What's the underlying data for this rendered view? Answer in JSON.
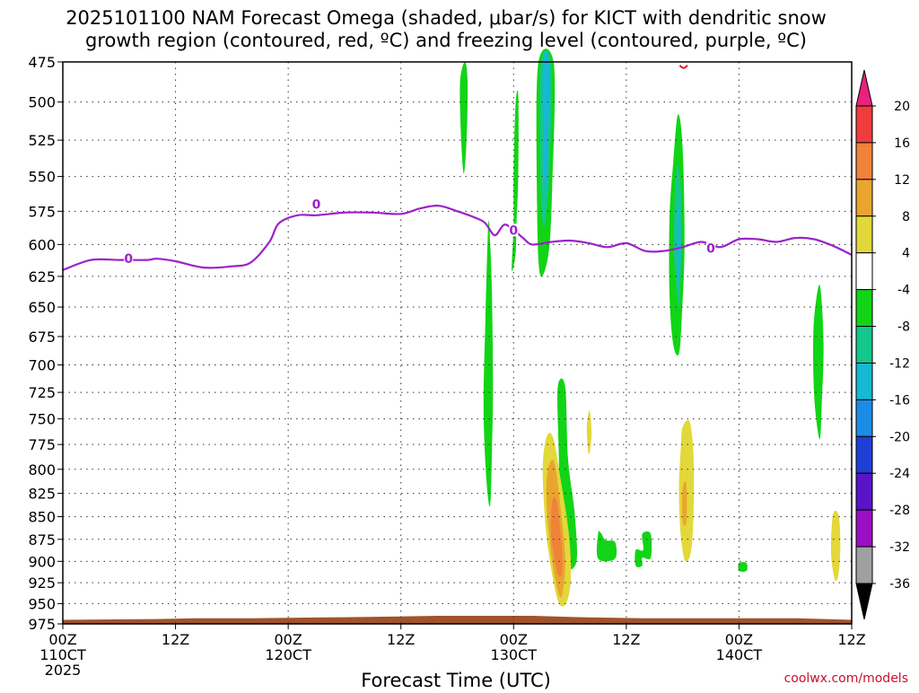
{
  "chart_data": {
    "type": "heatmap",
    "title_lines": [
      "2025101100 NAM Forecast Omega (shaded, μbar/s) for KICT with dendritic snow",
      "growth region (contoured, red, ºC) and freezing level (contoured, purple, ºC)"
    ],
    "xlabel": "Forecast Time (UTC)",
    "ylabel": "",
    "x_unit": "hours since 2025-10-11 00Z",
    "xlim": [
      0,
      84
    ],
    "x_ticks": [
      {
        "x": 0,
        "lines": [
          "00Z",
          "110CT",
          "2025"
        ]
      },
      {
        "x": 12,
        "lines": [
          "12Z"
        ]
      },
      {
        "x": 24,
        "lines": [
          "00Z",
          "120CT"
        ]
      },
      {
        "x": 36,
        "lines": [
          "12Z"
        ]
      },
      {
        "x": 48,
        "lines": [
          "00Z",
          "130CT"
        ]
      },
      {
        "x": 60,
        "lines": [
          "12Z"
        ]
      },
      {
        "x": 72,
        "lines": [
          "00Z",
          "140CT"
        ]
      },
      {
        "x": 84,
        "lines": [
          "12Z"
        ]
      }
    ],
    "y_scale": "log-pressure",
    "ylim_hPa": [
      975,
      475
    ],
    "y_ticks": [
      "475",
      "500",
      "525",
      "550",
      "575",
      "600",
      "625",
      "650",
      "675",
      "700",
      "725",
      "750",
      "775",
      "800",
      "825",
      "850",
      "875",
      "900",
      "925",
      "950",
      "975"
    ],
    "grid": true,
    "colorbar": {
      "labels": [
        "20",
        "16",
        "12",
        "8",
        "4",
        "-4",
        "-8",
        "-12",
        "-16",
        "-20",
        "-24",
        "-28",
        "-32",
        "-36"
      ],
      "bins": [
        {
          "range": ">20",
          "color": "#e8227e"
        },
        {
          "range": "16 to 20",
          "color": "#f03c3c"
        },
        {
          "range": "12 to 16",
          "color": "#f0823a"
        },
        {
          "range": "8 to 12",
          "color": "#e9a52e"
        },
        {
          "range": "4 to 8",
          "color": "#e2d83a"
        },
        {
          "range": "-4 to 4",
          "color": "#ffffff"
        },
        {
          "range": "-8 to -4",
          "color": "#12d416"
        },
        {
          "range": "-12 to -8",
          "color": "#14c78c"
        },
        {
          "range": "-16 to -12",
          "color": "#16b8d2"
        },
        {
          "range": "-20 to -16",
          "color": "#1a8ce6"
        },
        {
          "range": "-24 to -20",
          "color": "#1d3fd6"
        },
        {
          "range": "-28 to -24",
          "color": "#5a14c8"
        },
        {
          "range": "-32 to -28",
          "color": "#9a0fc3"
        },
        {
          "range": "-36 to -32",
          "color": "#a0a0a0"
        },
        {
          "range": "<-36",
          "color": "#000000"
        }
      ]
    },
    "freezing_level": {
      "color": "#9b22c9",
      "label": "0",
      "points": [
        [
          0,
          620
        ],
        [
          3,
          612
        ],
        [
          6,
          612
        ],
        [
          9,
          612
        ],
        [
          10,
          611
        ],
        [
          12,
          613
        ],
        [
          15,
          618
        ],
        [
          18,
          617
        ],
        [
          20,
          614
        ],
        [
          22,
          598
        ],
        [
          23,
          584
        ],
        [
          25,
          578
        ],
        [
          27,
          578
        ],
        [
          30,
          576
        ],
        [
          33,
          576
        ],
        [
          36,
          577
        ],
        [
          38,
          573
        ],
        [
          40,
          571
        ],
        [
          42,
          575
        ],
        [
          44,
          580
        ],
        [
          45,
          584
        ],
        [
          46,
          593
        ],
        [
          47,
          585
        ],
        [
          48,
          589
        ],
        [
          49,
          595
        ],
        [
          50,
          600
        ],
        [
          52,
          598
        ],
        [
          54,
          597
        ],
        [
          56,
          599
        ],
        [
          58,
          602
        ],
        [
          60,
          599
        ],
        [
          62,
          605
        ],
        [
          64,
          605
        ],
        [
          66,
          602
        ],
        [
          68,
          598
        ],
        [
          70,
          602
        ],
        [
          72,
          596
        ],
        [
          74,
          596
        ],
        [
          76,
          598
        ],
        [
          78,
          595
        ],
        [
          80,
          596
        ],
        [
          82,
          601
        ],
        [
          84,
          608
        ]
      ],
      "label_positions": [
        [
          7,
          611
        ],
        [
          27,
          570
        ],
        [
          48,
          589
        ],
        [
          69,
          603
        ]
      ]
    },
    "dgz_contour": {
      "color": "#e0181c",
      "points": [
        [
          65.7,
          477
        ],
        [
          66.5,
          477
        ]
      ]
    },
    "terrain": {
      "color": "#a0532a",
      "top_hPa": [
        [
          0,
          970
        ],
        [
          10,
          969
        ],
        [
          14,
          968
        ],
        [
          20,
          968
        ],
        [
          28,
          967
        ],
        [
          35,
          966
        ],
        [
          40,
          965
        ],
        [
          46,
          965
        ],
        [
          50,
          965
        ],
        [
          56,
          967
        ],
        [
          62,
          968
        ],
        [
          70,
          968
        ],
        [
          78,
          968
        ],
        [
          84,
          970
        ]
      ]
    },
    "omega_regions": [
      {
        "value": -6,
        "color": "#12d416",
        "polygon": [
          [
            42.3,
            488
          ],
          [
            42.8,
            474
          ],
          [
            43.1,
            487
          ],
          [
            43.0,
            523
          ],
          [
            42.7,
            548
          ],
          [
            42.4,
            523
          ]
        ]
      },
      {
        "value": -6,
        "color": "#12d416",
        "polygon": [
          [
            47.8,
            620
          ],
          [
            48.0,
            586
          ],
          [
            48.0,
            548
          ],
          [
            48.2,
            502
          ],
          [
            48.5,
            496
          ],
          [
            48.5,
            548
          ],
          [
            48.3,
            586
          ],
          [
            48.2,
            608
          ]
        ]
      },
      {
        "value": -6,
        "color": "#12d416",
        "polygon": [
          [
            45.3,
            585
          ],
          [
            45.5,
            598
          ],
          [
            45.7,
            640
          ],
          [
            45.8,
            720
          ],
          [
            45.7,
            780
          ],
          [
            45.5,
            838
          ],
          [
            45.1,
            810
          ],
          [
            44.8,
            740
          ],
          [
            45.0,
            660
          ]
        ]
      },
      {
        "value": -6,
        "color": "#12d416",
        "polygon": [
          [
            50.6,
            477
          ],
          [
            52.3,
            477
          ],
          [
            52.1,
            560
          ],
          [
            51.7,
            608
          ],
          [
            50.8,
            623
          ],
          [
            50.5,
            570
          ]
        ]
      },
      {
        "value": -10,
        "color": "#14c78c",
        "polygon": [
          [
            50.9,
            477
          ],
          [
            52.0,
            477
          ],
          [
            51.8,
            548
          ],
          [
            51.3,
            586
          ],
          [
            50.9,
            560
          ]
        ]
      },
      {
        "value": -14,
        "color": "#16b8d2",
        "polygon": [
          [
            51.1,
            477
          ],
          [
            51.8,
            477
          ],
          [
            51.6,
            540
          ],
          [
            51.3,
            560
          ]
        ]
      },
      {
        "value": -6,
        "color": "#12d416",
        "polygon": [
          [
            65.0,
            540
          ],
          [
            65.5,
            508
          ],
          [
            66.0,
            530
          ],
          [
            66.2,
            600
          ],
          [
            65.9,
            660
          ],
          [
            65.6,
            690
          ],
          [
            65.0,
            682
          ],
          [
            64.6,
            640
          ],
          [
            64.6,
            580
          ]
        ]
      },
      {
        "value": -10,
        "color": "#14c78c",
        "polygon": [
          [
            65.3,
            548
          ],
          [
            65.6,
            545
          ],
          [
            65.9,
            575
          ],
          [
            65.7,
            645
          ],
          [
            65.4,
            640
          ],
          [
            65.1,
            610
          ],
          [
            65.1,
            580
          ]
        ]
      },
      {
        "value": -14,
        "color": "#16b8d2",
        "polygon": [
          [
            65.4,
            575
          ],
          [
            65.6,
            573
          ],
          [
            65.8,
            600
          ],
          [
            65.6,
            630
          ],
          [
            65.4,
            615
          ]
        ]
      },
      {
        "value": -6,
        "color": "#12d416",
        "polygon": [
          [
            52.7,
            720
          ],
          [
            53.5,
            720
          ],
          [
            53.8,
            790
          ],
          [
            54.5,
            846
          ],
          [
            54.7,
            900
          ],
          [
            53.5,
            905
          ],
          [
            53.0,
            855
          ],
          [
            52.8,
            780
          ]
        ]
      },
      {
        "value": -6,
        "color": "#12d416",
        "polygon": [
          [
            57.0,
            868
          ],
          [
            57.3,
            868
          ],
          [
            57.8,
            876
          ],
          [
            58.8,
            878
          ],
          [
            58.8,
            897
          ],
          [
            57.0,
            897
          ]
        ]
      },
      {
        "value": -6,
        "color": "#12d416",
        "polygon": [
          [
            61.0,
            887
          ],
          [
            61.8,
            887
          ],
          [
            61.7,
            869
          ],
          [
            62.6,
            869
          ],
          [
            62.6,
            896
          ],
          [
            61.7,
            896
          ],
          [
            61.7,
            905
          ],
          [
            61.0,
            905
          ]
        ]
      },
      {
        "value": -6,
        "color": "#12d416",
        "polygon": [
          [
            80.0,
            660
          ],
          [
            80.6,
            632
          ],
          [
            81.0,
            680
          ],
          [
            80.8,
            740
          ],
          [
            80.6,
            770
          ],
          [
            80.1,
            740
          ],
          [
            79.9,
            700
          ]
        ]
      },
      {
        "value": -6,
        "color": "#12d416",
        "polygon": [
          [
            72.0,
            902
          ],
          [
            72.8,
            902
          ],
          [
            72.8,
            911
          ],
          [
            72.0,
            911
          ]
        ]
      },
      {
        "value": 5,
        "color": "#e2d83a",
        "polygon": [
          [
            55.8,
            758
          ],
          [
            56.1,
            742
          ],
          [
            56.3,
            765
          ],
          [
            56.0,
            785
          ]
        ]
      },
      {
        "value": 5,
        "color": "#e2d83a",
        "polygon": [
          [
            66.0,
            758
          ],
          [
            66.8,
            754
          ],
          [
            67.2,
            800
          ],
          [
            67.0,
            880
          ],
          [
            66.3,
            900
          ],
          [
            65.8,
            870
          ],
          [
            65.6,
            820
          ],
          [
            65.8,
            780
          ]
        ]
      },
      {
        "value": 8.5,
        "color": "#e9a52e",
        "polygon": [
          [
            66.0,
            820
          ],
          [
            66.4,
            815
          ],
          [
            66.4,
            855
          ],
          [
            66.0,
            855
          ]
        ]
      },
      {
        "value": 5,
        "color": "#e2d83a",
        "polygon": [
          [
            82.0,
            848
          ],
          [
            82.6,
            848
          ],
          [
            82.8,
            880
          ],
          [
            82.6,
            915
          ],
          [
            82.2,
            921
          ],
          [
            81.8,
            890
          ]
        ]
      },
      {
        "value": 5,
        "color": "#e2d83a",
        "polygon": [
          [
            51.5,
            768
          ],
          [
            52.2,
            768
          ],
          [
            53.0,
            810
          ],
          [
            53.9,
            870
          ],
          [
            54.1,
            920
          ],
          [
            53.6,
            949
          ],
          [
            52.8,
            949
          ],
          [
            52.0,
            908
          ],
          [
            51.4,
            860
          ],
          [
            51.1,
            800
          ]
        ]
      },
      {
        "value": 9,
        "color": "#e9a52e",
        "polygon": [
          [
            51.8,
            795
          ],
          [
            52.4,
            795
          ],
          [
            53.1,
            850
          ],
          [
            53.5,
            900
          ],
          [
            53.2,
            938
          ],
          [
            52.8,
            938
          ],
          [
            52.1,
            900
          ],
          [
            51.6,
            850
          ],
          [
            51.5,
            815
          ]
        ]
      },
      {
        "value": 13,
        "color": "#f0823a",
        "polygon": [
          [
            52.1,
            835
          ],
          [
            52.6,
            833
          ],
          [
            53.1,
            880
          ],
          [
            53.2,
            910
          ],
          [
            52.9,
            918
          ],
          [
            52.5,
            905
          ],
          [
            52.0,
            870
          ]
        ]
      }
    ]
  },
  "credit": "coolwx.com/models"
}
